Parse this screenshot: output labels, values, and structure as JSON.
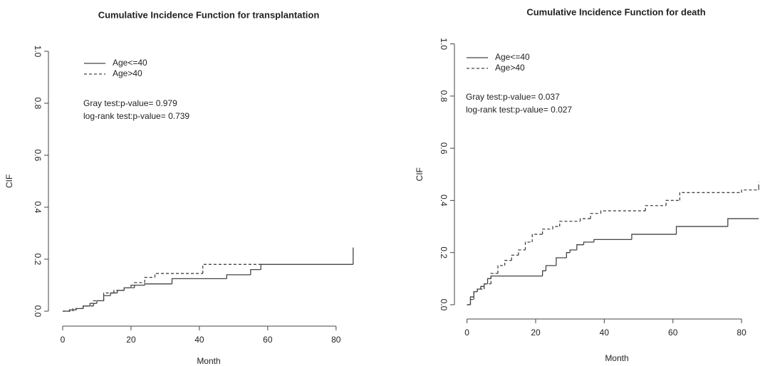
{
  "chart_data": [
    {
      "type": "step",
      "title": "Cumulative Incidence Function for transplantation",
      "x_label": "Month",
      "y_label": "CIF",
      "annotations": [
        "Gray test:p-value= 0.979",
        "log-rank test:p-value= 0.739"
      ],
      "xlim": [
        -3,
        89
      ],
      "ylim": [
        -0.04,
        1.04
      ],
      "xticks": [
        0,
        20,
        40,
        60,
        80
      ],
      "yticks": [
        {
          "value": 0,
          "label": "0.0"
        },
        0.2,
        0.4,
        0.6,
        0.8,
        {
          "value": 1,
          "label": "1.0"
        }
      ],
      "legend": "top-left",
      "series": [
        {
          "name": "Age<=40",
          "color": "#444444",
          "dash": "solid",
          "x": [
            0,
            2,
            4,
            6,
            8,
            10,
            12,
            14,
            16,
            18,
            20,
            24,
            32,
            48,
            55,
            58,
            85,
            85
          ],
          "values": [
            0,
            0.005,
            0.01,
            0.02,
            0.03,
            0.04,
            0.06,
            0.07,
            0.08,
            0.09,
            0.1,
            0.105,
            0.125,
            0.14,
            0.16,
            0.18,
            0.18,
            0.245
          ]
        },
        {
          "name": "Age>40",
          "color": "#444444",
          "dash": "dashed",
          "x": [
            0,
            3,
            6,
            9,
            12,
            15,
            18,
            21,
            24,
            27,
            41,
            58
          ],
          "values": [
            0,
            0.01,
            0.02,
            0.04,
            0.07,
            0.08,
            0.09,
            0.11,
            0.13,
            0.145,
            0.18,
            0.18
          ]
        }
      ]
    },
    {
      "type": "step",
      "title": "Cumulative Incidence Function for death",
      "x_label": "Month",
      "y_label": "CIF",
      "annotations": [
        "Gray test:p-value= 0.037",
        "log-rank test:p-value= 0.027"
      ],
      "xlim": [
        -2,
        86
      ],
      "ylim": [
        -0.04,
        1.04
      ],
      "xticks": [
        0,
        20,
        40,
        60,
        80
      ],
      "yticks": [
        {
          "value": 0,
          "label": "0.0"
        },
        0.2,
        0.4,
        0.6,
        0.8,
        {
          "value": 1,
          "label": "1.0"
        }
      ],
      "legend": "top-left",
      "series": [
        {
          "name": "Age<=40",
          "color": "#444444",
          "dash": "solid",
          "x": [
            0,
            1,
            2,
            3,
            4,
            5,
            6,
            7,
            22,
            23,
            26,
            29,
            30,
            32,
            34,
            37,
            48,
            61,
            76,
            85
          ],
          "values": [
            0,
            0.03,
            0.05,
            0.06,
            0.07,
            0.08,
            0.1,
            0.11,
            0.13,
            0.15,
            0.18,
            0.2,
            0.21,
            0.23,
            0.24,
            0.25,
            0.27,
            0.3,
            0.33,
            0.33
          ]
        },
        {
          "name": "Age>40",
          "color": "#444444",
          "dash": "dashed",
          "x": [
            0,
            1,
            2,
            3,
            5,
            7,
            9,
            11,
            13,
            15,
            17,
            19,
            22,
            25,
            27,
            33,
            36,
            39,
            52,
            58,
            62,
            80,
            85,
            85
          ],
          "values": [
            0,
            0.02,
            0.05,
            0.06,
            0.08,
            0.12,
            0.15,
            0.17,
            0.19,
            0.21,
            0.24,
            0.27,
            0.29,
            0.3,
            0.32,
            0.33,
            0.35,
            0.36,
            0.38,
            0.4,
            0.43,
            0.44,
            0.45,
            0.47
          ]
        }
      ]
    }
  ]
}
